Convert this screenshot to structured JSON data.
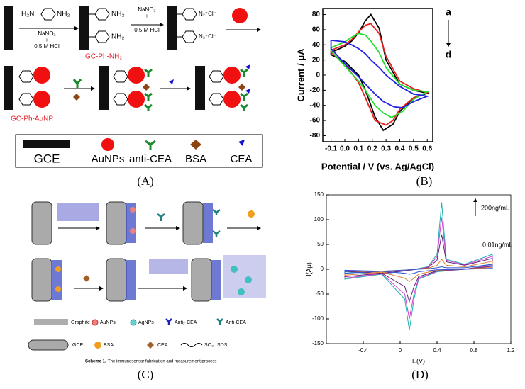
{
  "panels": [
    "(A)",
    "(B)",
    "(C)",
    "(D)"
  ],
  "scheme_a": {
    "amine_left": "H₂N",
    "amine_right": "NH₂",
    "step1": [
      "NaNO₂",
      "+",
      "0.5 M HCl"
    ],
    "product1_groups": [
      "NH₂",
      "NH₂"
    ],
    "step2": [
      "NaNO₂",
      "+",
      "0.5 M HCl"
    ],
    "diazonium": [
      "N₂⁺Cl⁻",
      "N₂⁺Cl⁻"
    ],
    "label1": "GC-Ph-NH₂",
    "label2": "GC-Ph-AuNP",
    "legend": [
      "GCE",
      "AuNPs",
      "anti-CEA",
      "BSA",
      "CEA"
    ]
  },
  "scheme_c": {
    "legend": [
      "Graphite",
      "AuNPs",
      "AgNPs",
      "Anti₂-CEA",
      "Anti-CEA",
      "GCE",
      "BSA",
      "CEA",
      "SO₃⁻",
      "SDS"
    ],
    "caption_bold": "Scheme 1.",
    "caption": "The immunosensor fabrication and measurement process"
  },
  "chart_data": [
    {
      "type": "line",
      "xlabel": "Potential / V (vs. Ag/AgCl)",
      "ylabel": "Current / μA",
      "xlim": [
        -0.16,
        0.64
      ],
      "ylim": [
        -88,
        88
      ],
      "xticks": [
        -0.1,
        {
          "value": 0,
          "label": "0.0"
        },
        0.1,
        0.2,
        0.3,
        0.4,
        0.5,
        0.6
      ],
      "yticks": [
        -80,
        -60,
        -40,
        -20,
        0,
        20,
        40,
        60,
        80
      ],
      "annotations": [
        "a",
        "d"
      ],
      "series": [
        {
          "color": "#000000",
          "x": [
            -0.1,
            0,
            0.05,
            0.1,
            0.15,
            0.19,
            0.25,
            0.3,
            0.4,
            0.5,
            0.6,
            0.5,
            0.4,
            0.35,
            0.28,
            0.22,
            0.15,
            0.1,
            0,
            -0.1
          ],
          "values": [
            30,
            38,
            45,
            56,
            72,
            80,
            62,
            20,
            -12,
            -20,
            -24,
            -30,
            -48,
            -65,
            -73,
            -55,
            -20,
            0,
            18,
            27
          ]
        },
        {
          "color": "#e8201c",
          "x": [
            -0.1,
            0,
            0.05,
            0.1,
            0.15,
            0.19,
            0.25,
            0.3,
            0.4,
            0.5,
            0.6,
            0.5,
            0.4,
            0.35,
            0.3,
            0.22,
            0.15,
            0.1,
            0,
            -0.1
          ],
          "values": [
            33,
            40,
            47,
            57,
            66,
            68,
            55,
            25,
            -8,
            -18,
            -23,
            -30,
            -45,
            -60,
            -66,
            -60,
            -30,
            -10,
            15,
            30
          ]
        },
        {
          "color": "#22e030",
          "x": [
            -0.1,
            0,
            0.05,
            0.1,
            0.15,
            0.19,
            0.25,
            0.3,
            0.4,
            0.5,
            0.6,
            0.5,
            0.42,
            0.34,
            0.28,
            0.22,
            0.15,
            0.1,
            0,
            -0.1
          ],
          "values": [
            36,
            44,
            50,
            55,
            53,
            45,
            30,
            10,
            -12,
            -20,
            -22,
            -32,
            -48,
            -56,
            -50,
            -40,
            -20,
            -8,
            12,
            32
          ]
        },
        {
          "color": "#2020e8",
          "x": [
            -0.1,
            0,
            0.05,
            0.1,
            0.15,
            0.19,
            0.25,
            0.3,
            0.4,
            0.5,
            0.6,
            0.5,
            0.42,
            0.36,
            0.28,
            0.22,
            0.15,
            0.1,
            0,
            -0.1
          ],
          "values": [
            46,
            44,
            40,
            35,
            28,
            20,
            10,
            0,
            -15,
            -25,
            -28,
            -35,
            -43,
            -42,
            -35,
            -25,
            -12,
            -2,
            15,
            35
          ]
        }
      ]
    },
    {
      "type": "line",
      "xlabel": "E(V)",
      "ylabel": "I(Aμ)",
      "xlim": [
        -0.8,
        1.2
      ],
      "ylim": [
        -150,
        150
      ],
      "xticks": [
        -0.4,
        0,
        0.4,
        0.8,
        1.2
      ],
      "yticks": [
        -150,
        -100,
        -50,
        0,
        50,
        100,
        150
      ],
      "annotations": [
        "200ng/mL",
        "0.01ng/mL"
      ],
      "series": [
        {
          "color": "#20b0b0",
          "x": [
            -0.6,
            -0.2,
            0.1,
            0.3,
            0.4,
            0.45,
            0.5,
            0.7,
            1.0,
            1.0,
            0.7,
            0.4,
            0.2,
            0.15,
            0.1,
            0.05,
            -0.2,
            -0.6
          ],
          "values": [
            -20,
            -10,
            -2,
            5,
            30,
            135,
            20,
            10,
            30,
            10,
            0,
            -5,
            -20,
            -60,
            -123,
            -60,
            -10,
            -5
          ]
        },
        {
          "color": "#d040d0",
          "x": [
            -0.6,
            -0.2,
            0.1,
            0.3,
            0.4,
            0.45,
            0.5,
            0.7,
            1.0,
            1.0,
            0.7,
            0.4,
            0.2,
            0.15,
            0.1,
            0.05,
            -0.2,
            -0.6
          ],
          "values": [
            -18,
            -9,
            -2,
            4,
            25,
            105,
            18,
            9,
            26,
            8,
            0,
            -4,
            -18,
            -50,
            -100,
            -50,
            -9,
            -4
          ]
        },
        {
          "color": "#602080",
          "x": [
            -0.6,
            -0.2,
            0.1,
            0.3,
            0.4,
            0.45,
            0.5,
            0.7,
            1.0,
            1.0,
            0.7,
            0.4,
            0.2,
            0.15,
            0.1,
            0.05,
            -0.2,
            -0.6
          ],
          "values": [
            -15,
            -8,
            -2,
            3,
            18,
            70,
            15,
            8,
            22,
            6,
            0,
            -3,
            -15,
            -35,
            -65,
            -35,
            -8,
            -4
          ]
        },
        {
          "color": "#e08030",
          "x": [
            -0.6,
            -0.2,
            0.1,
            0.3,
            0.4,
            0.45,
            0.5,
            0.7,
            1.0,
            1.0,
            0.7,
            0.4,
            0.2,
            0.15,
            0.1,
            0.05,
            -0.2,
            -0.6
          ],
          "values": [
            -12,
            -6,
            -1,
            2,
            8,
            20,
            8,
            5,
            16,
            4,
            0,
            -2,
            -10,
            -18,
            -25,
            -18,
            -6,
            -3
          ]
        },
        {
          "color": "#3050d0",
          "x": [
            -0.6,
            -0.2,
            0.1,
            0.3,
            0.4,
            0.45,
            0.5,
            0.7,
            1.0,
            1.0,
            0.7,
            0.4,
            0.2,
            0.15,
            0.1,
            0.05,
            -0.2,
            -0.6
          ],
          "values": [
            -8,
            -4,
            -1,
            1,
            3,
            5,
            3,
            3,
            10,
            2,
            0,
            -1,
            -5,
            -8,
            -10,
            -8,
            -4,
            -2
          ]
        }
      ]
    }
  ]
}
